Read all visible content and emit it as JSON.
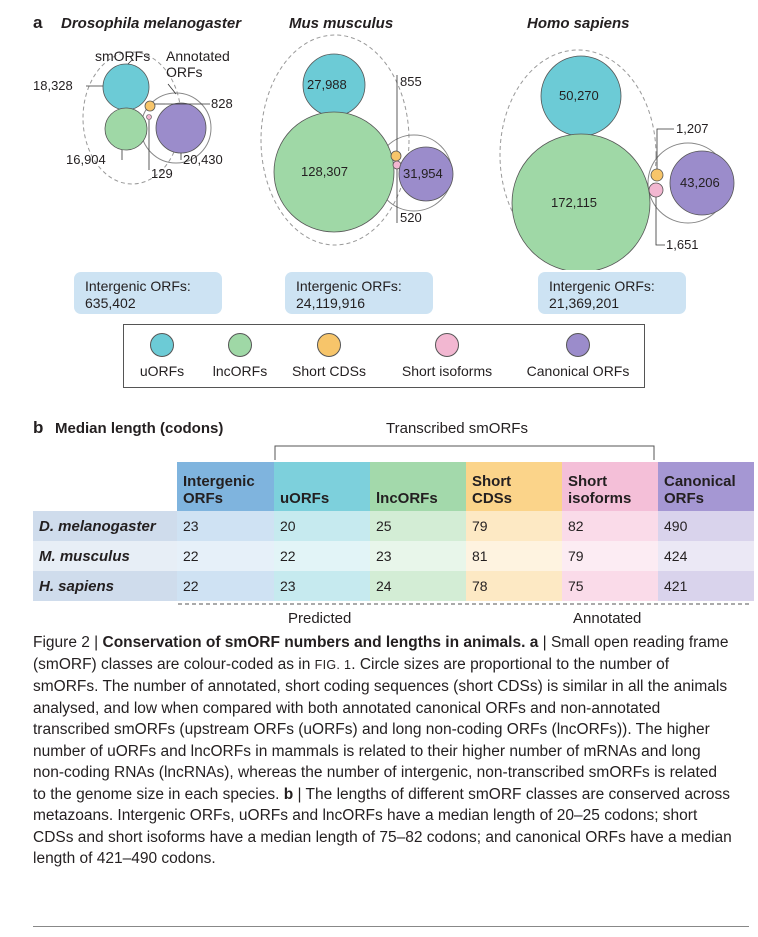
{
  "panel_a": {
    "letter": "a",
    "species": [
      "Drosophila melanogaster",
      "Mus musculus",
      "Homo sapiens"
    ],
    "dmel": {
      "smorfs_label": "smORFs",
      "annotated_label_1": "Annotated",
      "annotated_label_2": "ORFs",
      "uorfs": "18,328",
      "lncorfs": "16,904",
      "short_cds": "828",
      "short_isoforms": "129",
      "canonical": "20,430"
    },
    "mmus": {
      "uorfs": "27,988",
      "lncorfs": "128,307",
      "short_cds": "855",
      "short_isoforms": "520",
      "canonical": "31,954"
    },
    "hsap": {
      "uorfs": "50,270",
      "lncorfs": "172,115",
      "short_cds": "1,207",
      "short_isoforms": "1,651",
      "canonical": "43,206"
    },
    "intergenic": [
      {
        "label": "Intergenic ORFs:",
        "value": "635,402"
      },
      {
        "label": "Intergenic ORFs:",
        "value": "24,119,916"
      },
      {
        "label": "Intergenic ORFs:",
        "value": "21,369,201"
      }
    ],
    "legend": [
      {
        "label": "uORFs",
        "color": "#6ccbd6"
      },
      {
        "label": "lncORFs",
        "color": "#9fd8a6"
      },
      {
        "label": "Short CDSs",
        "color": "#f7c56a"
      },
      {
        "label": "Short isoforms",
        "color": "#f2b7d1"
      },
      {
        "label": "Canonical ORFs",
        "color": "#9b8ccb"
      }
    ]
  },
  "panel_b": {
    "letter": "b",
    "title": "Median length (codons)",
    "transcribed_label": "Transcribed smORFs",
    "predicted_label": "Predicted",
    "annotated_label": "Annotated",
    "columns": [
      "Intergenic ORFs",
      "uORFs",
      "lncORFs",
      "Short CDSs",
      "Short isoforms",
      "Canonical ORFs"
    ],
    "columns_split": [
      [
        "Intergenic",
        "ORFs"
      ],
      [
        "",
        "uORFs"
      ],
      [
        "",
        "lncORFs"
      ],
      [
        "Short",
        "CDSs"
      ],
      [
        "Short",
        "isoforms"
      ],
      [
        "Canonical",
        "ORFs"
      ]
    ],
    "rows": [
      {
        "species": "D. melanogaster",
        "values": [
          "23",
          "20",
          "25",
          "79",
          "82",
          "490"
        ]
      },
      {
        "species": "M. musculus",
        "values": [
          "22",
          "22",
          "23",
          "81",
          "79",
          "424"
        ]
      },
      {
        "species": "H. sapiens",
        "values": [
          "22",
          "23",
          "24",
          "78",
          "75",
          "421"
        ]
      }
    ]
  },
  "caption": {
    "fig": "Figure 2 | ",
    "title": "Conservation of smORF numbers and lengths in animals.",
    "a_marker": "a",
    "text_1": " | Small open reading frame (smORF) classes are colour-coded as in ",
    "fig_ref": "FIG. 1",
    "text_2": ". Circle sizes are proportional to the number of smORFs. The number of annotated, short coding sequences (short CDSs) is similar in all the animals analysed, and low when compared with both annotated canonical ORFs and non-annotated transcribed smORFs (upstream ORFs (uORFs) and long non-coding ORFs (lncORFs)). The higher number of uORFs and lncORFs in mammals is related to their higher number of mRNAs and long non-coding RNAs (lncRNAs), whereas the number of intergenic, non-transcribed smORFs is related to the genome size in each species. ",
    "b_marker": "b",
    "text_3": " | The lengths of different smORF classes are conserved across metazoans. Intergenic ORFs, uORFs and lncORFs have a median length of 20–25 codons; short CDSs and short isoforms have a median length of 75–82 codons; and canonical ORFs have a median length of 421–490 codons."
  }
}
